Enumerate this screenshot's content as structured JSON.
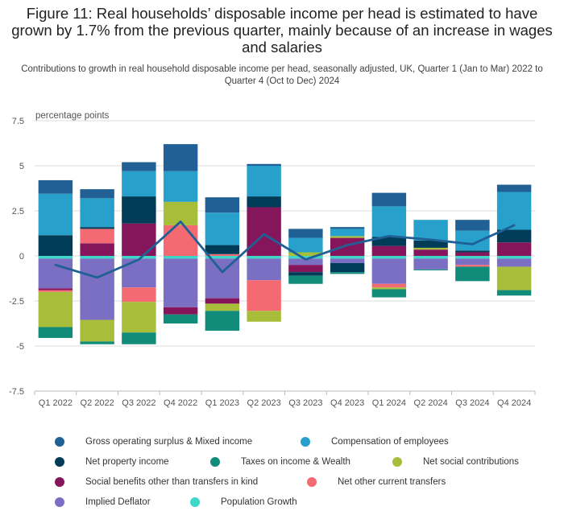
{
  "title": "Figure 11: Real households’ disposable income per head is estimated to have grown by 1.7% from the previous quarter, mainly because of an increase in wages and salaries",
  "subtitle": "Contributions to growth in real household disposable income per head, seasonally adjusted, UK, Quarter 1 (Jan to Mar) 2022 to Quarter 4 (Oct to Dec) 2024",
  "chart_data": {
    "type": "bar",
    "stacked": true,
    "ylabel": "percentage points",
    "ylim": [
      -7.5,
      7.5
    ],
    "yticks": [
      "7.5",
      "5",
      "2.5",
      "0",
      "-2.5",
      "-5",
      "-7.5"
    ],
    "categories": [
      "Q1 2022",
      "Q2 2022",
      "Q3 2022",
      "Q4 2022",
      "Q1 2023",
      "Q2 2023",
      "Q3 2023",
      "Q4 2023",
      "Q1 2024",
      "Q2 2024",
      "Q3 2024",
      "Q4 2024"
    ],
    "grid": true,
    "legend_position": "bottom",
    "series": [
      {
        "name": "Population Growth",
        "color": "#3cd7c7",
        "values": [
          -0.15,
          -0.15,
          -0.15,
          -0.15,
          -0.15,
          -0.15,
          -0.15,
          -0.15,
          -0.15,
          -0.15,
          -0.15,
          -0.15
        ]
      },
      {
        "name": "Implied Deflator",
        "color": "#7a6fc2",
        "values": [
          -1.65,
          -3.4,
          -1.6,
          -2.7,
          -2.2,
          -1.2,
          -0.35,
          -0.25,
          -1.4,
          -0.6,
          -0.35,
          -0.45
        ]
      },
      {
        "name": "Social benefits other than transfers in kind",
        "color": "#85165b",
        "values": [
          -0.1,
          0.7,
          1.8,
          -0.4,
          -0.3,
          2.7,
          -0.4,
          1.0,
          0.55,
          0.35,
          0.2,
          0.75
        ]
      },
      {
        "name": "Net other current transfers",
        "color": "#f46a72",
        "values": [
          -0.1,
          0.8,
          -0.8,
          1.7,
          0.1,
          -1.7,
          0.0,
          0.0,
          -0.2,
          0.0,
          -0.1,
          0.0
        ]
      },
      {
        "name": "Net social contributions",
        "color": "#a8bd3a",
        "values": [
          -1.95,
          -1.2,
          -1.7,
          1.3,
          -0.4,
          -0.6,
          0.2,
          0.1,
          -0.1,
          0.1,
          0.0,
          -1.3
        ]
      },
      {
        "name": "Net property income",
        "color": "#003c57",
        "values": [
          1.15,
          0.1,
          1.5,
          0.0,
          0.5,
          0.6,
          -0.2,
          -0.5,
          0.5,
          0.4,
          0.1,
          0.7
        ]
      },
      {
        "name": "Taxes on income & Wealth",
        "color": "#118c7b",
        "values": [
          -0.6,
          -0.15,
          -0.65,
          -0.5,
          -1.1,
          0.0,
          -0.45,
          -0.1,
          -0.45,
          -0.05,
          -0.8,
          -0.3
        ]
      },
      {
        "name": "Compensation of employees",
        "color": "#27a0cc",
        "values": [
          2.3,
          1.6,
          1.4,
          1.7,
          1.8,
          1.7,
          0.8,
          0.4,
          1.7,
          1.15,
          1.1,
          2.1
        ]
      },
      {
        "name": "Gross operating surplus & Mixed income",
        "color": "#206095",
        "values": [
          0.75,
          0.5,
          0.5,
          1.5,
          0.85,
          0.1,
          0.5,
          0.1,
          0.75,
          0.0,
          0.6,
          0.4
        ]
      }
    ],
    "line": {
      "name": "Real households’ disposable income per head",
      "color": "#206095",
      "values": [
        -0.5,
        -1.2,
        -0.2,
        1.9,
        -0.9,
        1.2,
        -0.2,
        0.6,
        1.1,
        0.9,
        0.65,
        1.7
      ]
    }
  },
  "legend": [
    {
      "label": "Gross operating surplus & Mixed income",
      "color": "#206095"
    },
    {
      "label": "Compensation of employees",
      "color": "#27a0cc"
    },
    {
      "label": "Net property income",
      "color": "#003c57"
    },
    {
      "label": "Taxes on income & Wealth",
      "color": "#118c7b"
    },
    {
      "label": "Net social contributions",
      "color": "#a8bd3a"
    },
    {
      "label": "Social benefits other than transfers in kind",
      "color": "#85165b"
    },
    {
      "label": "Net other current transfers",
      "color": "#f46a72"
    },
    {
      "label": "Implied Deflator",
      "color": "#7a6fc2"
    },
    {
      "label": "Population Growth",
      "color": "#3cd7c7"
    }
  ]
}
